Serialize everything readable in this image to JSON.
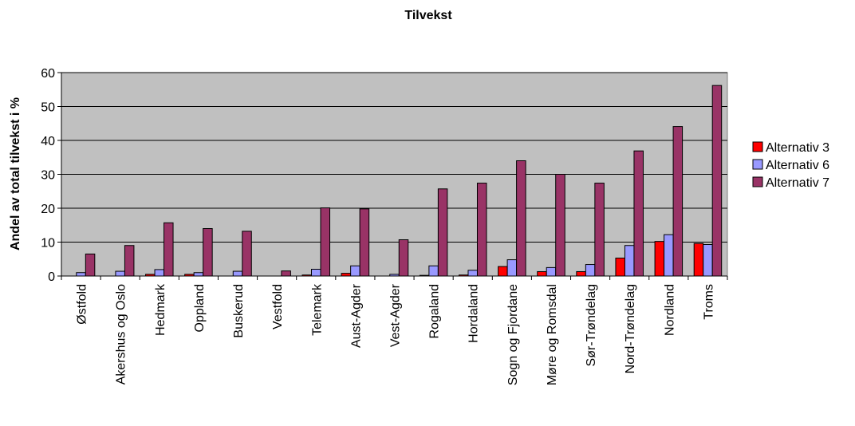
{
  "chart_data": {
    "type": "bar",
    "title": "Tilvekst",
    "xlabel": "",
    "ylabel": "Andel av total tilvekst i %",
    "ylim": [
      0,
      60
    ],
    "yticks": [
      0,
      10,
      20,
      30,
      40,
      50,
      60
    ],
    "grid": true,
    "legend_position": "right",
    "categories": [
      "Østfold",
      "Akershus og Oslo",
      "Hedmark",
      "Oppland",
      "Buskerud",
      "Vestfold",
      "Telemark",
      "Aust-Agder",
      "Vest-Agder",
      "Rogaland",
      "Hordaland",
      "Sogn og Fjordane",
      "Møre og Romsdal",
      "Sør-Trøndelag",
      "Nord-Trøndelag",
      "Nordland",
      "Troms"
    ],
    "series": [
      {
        "name": "Alternativ 3",
        "color": "#ff0000",
        "values": [
          0,
          0,
          0.5,
          0.5,
          0,
          0,
          0.3,
          0.8,
          0,
          0.2,
          0.3,
          2.8,
          1.3,
          1.3,
          5.3,
          10.2,
          9.6
        ]
      },
      {
        "name": "Alternativ 6",
        "color": "#9999ff",
        "values": [
          1.0,
          1.4,
          1.9,
          1.0,
          1.4,
          0,
          2.0,
          3.0,
          0.5,
          3.0,
          1.7,
          4.8,
          2.5,
          3.4,
          9.0,
          12.2,
          9.3
        ]
      },
      {
        "name": "Alternativ 7",
        "color": "#993366",
        "values": [
          6.5,
          9.0,
          15.7,
          14.0,
          13.2,
          1.5,
          20.1,
          19.8,
          10.7,
          25.7,
          27.4,
          34.0,
          30.0,
          27.4,
          36.9,
          44.1,
          56.2
        ]
      }
    ],
    "plot_background": "#c0c0c0"
  }
}
